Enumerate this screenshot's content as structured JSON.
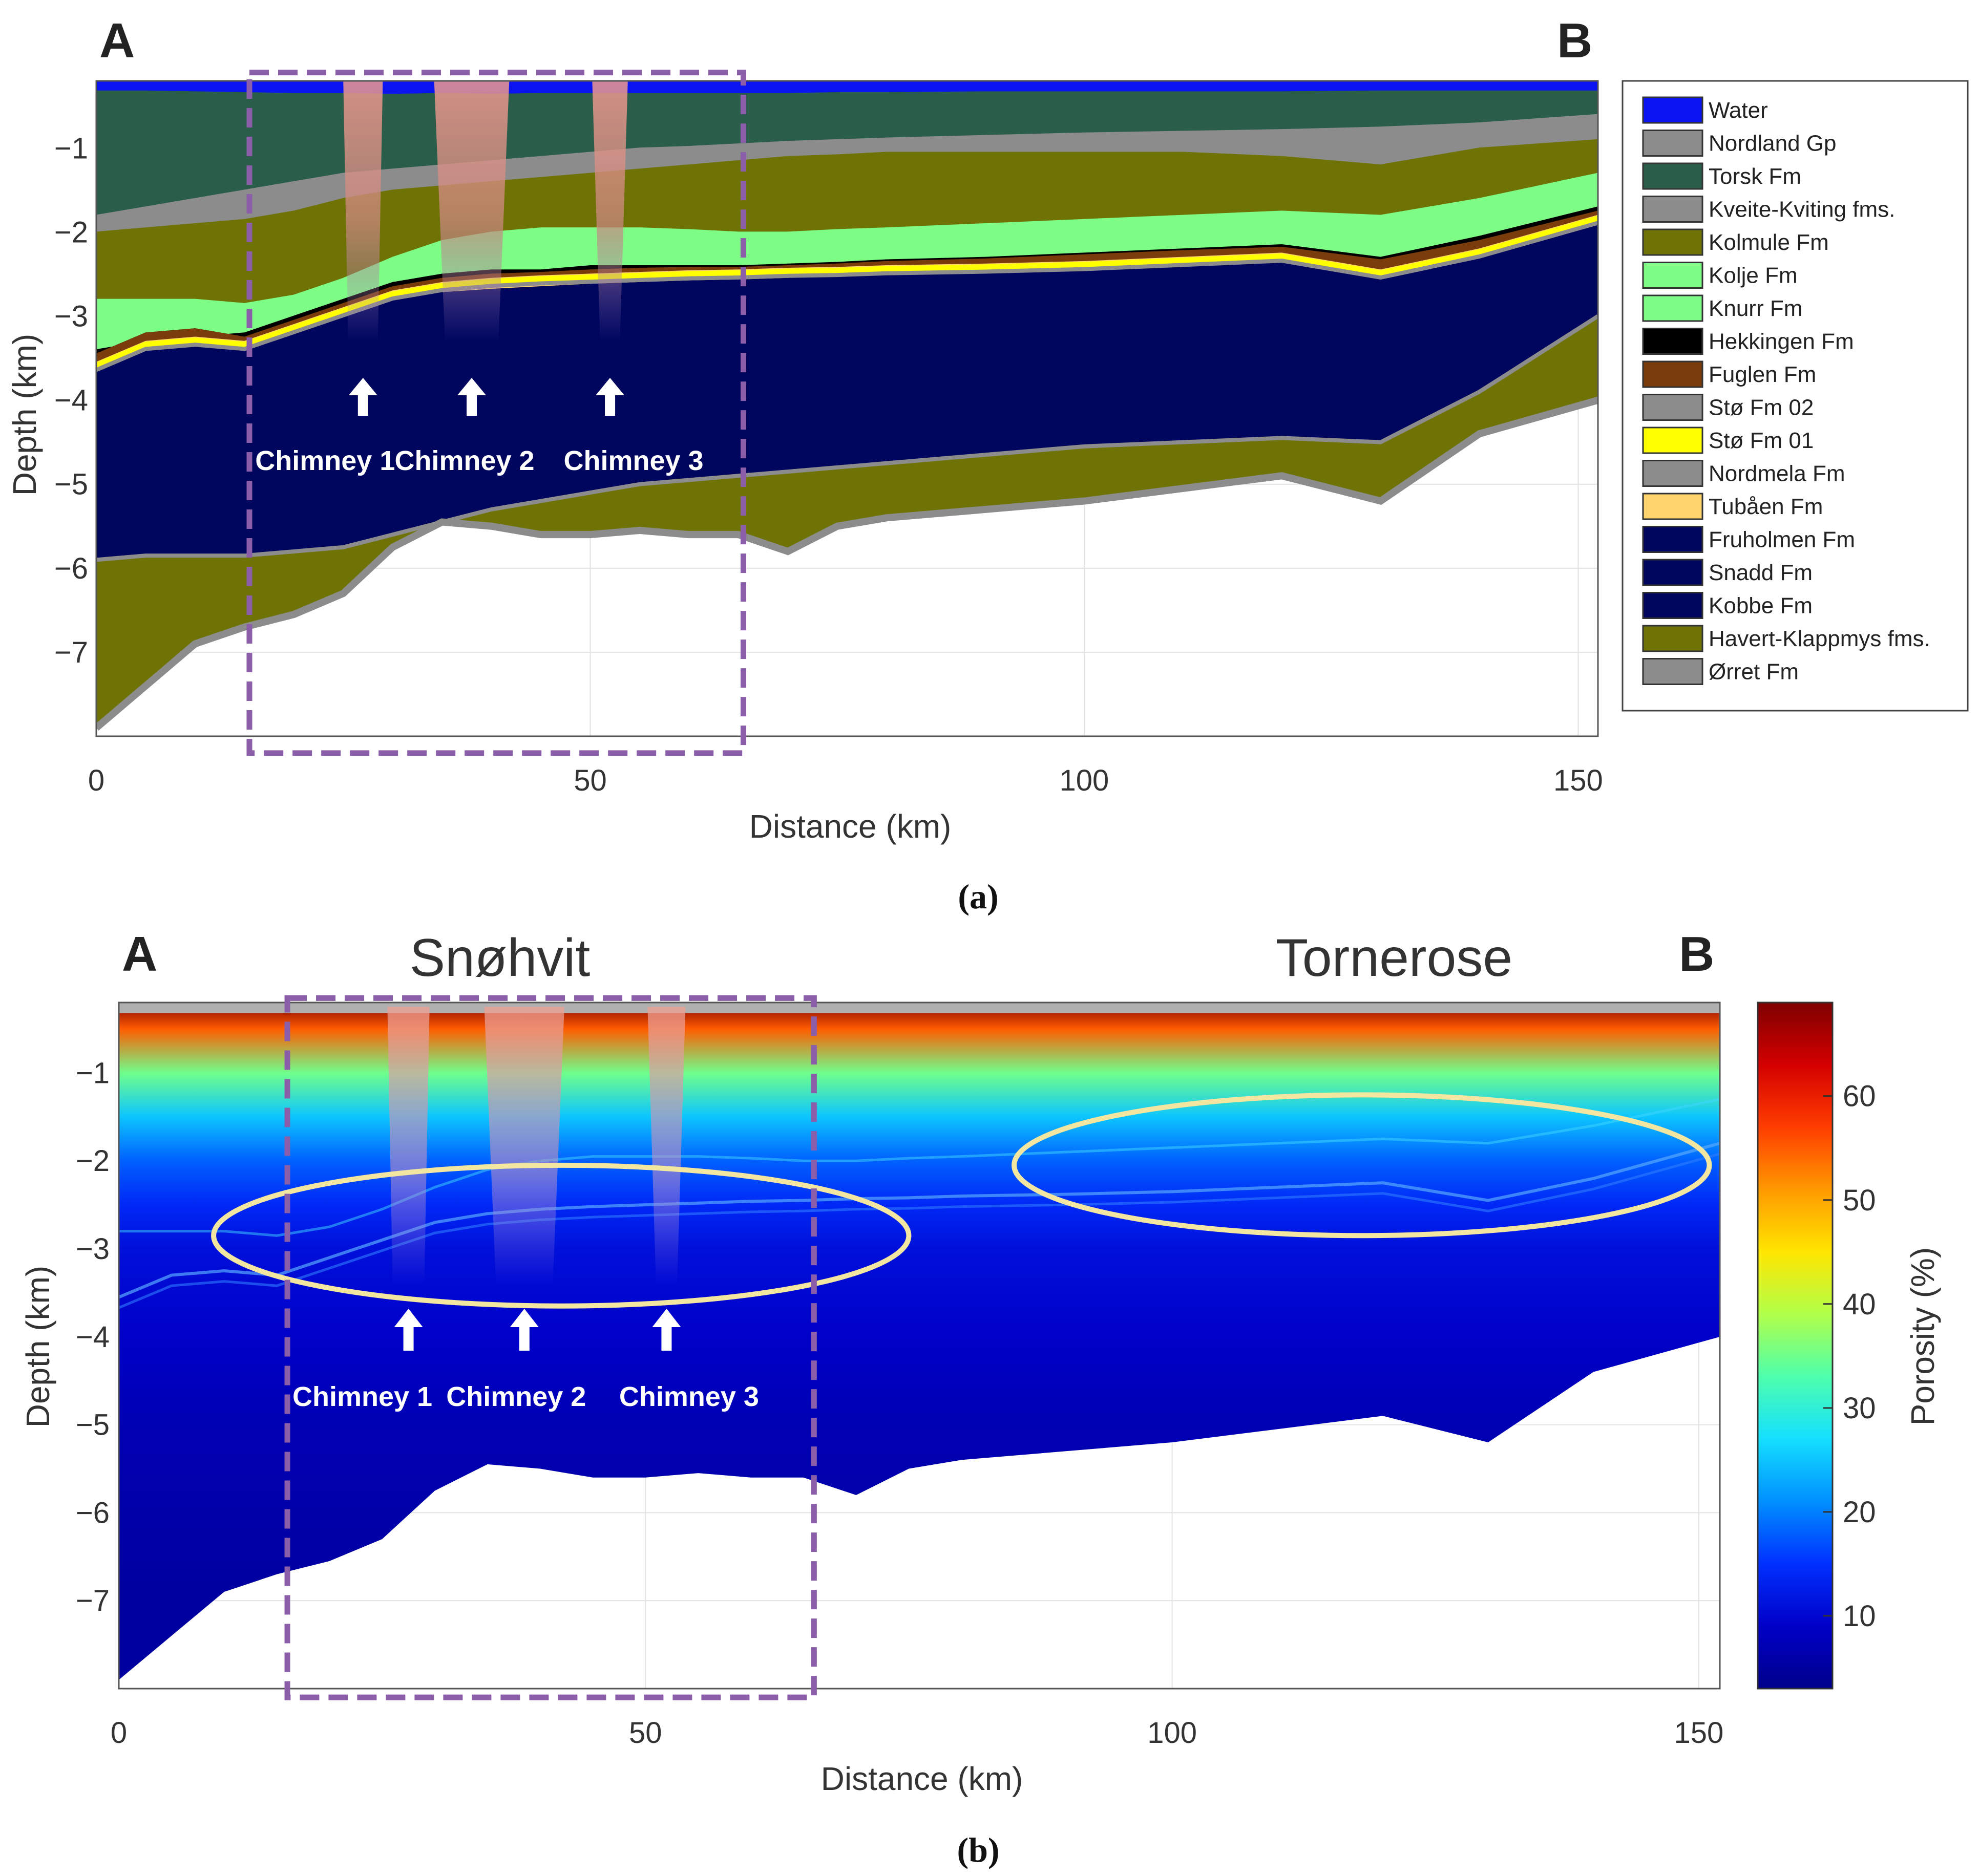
{
  "panel_a": {
    "corner_left": "A",
    "corner_right": "B",
    "caption": "(a)",
    "y_axis_label": "Depth (km)",
    "x_axis_label": "Distance (km)",
    "x_ticks": [
      0,
      50,
      100,
      150
    ],
    "y_ticks": [
      -1,
      -2,
      -3,
      -4,
      -5,
      -6,
      -7
    ],
    "x_range_km": [
      0,
      152
    ],
    "depth_range_km": [
      -0.2,
      -8.0
    ],
    "chimneys": [
      {
        "label": "Chimney 1",
        "x_km": 27,
        "top_km": -0.2,
        "bottom_km": -3.3,
        "half_width_top_km": 2.0,
        "half_width_bottom_km": 1.5
      },
      {
        "label": "Chimney 2",
        "x_km": 38,
        "top_km": -0.2,
        "bottom_km": -3.3,
        "half_width_top_km": 3.8,
        "half_width_bottom_km": 2.7
      },
      {
        "label": "Chimney 3",
        "x_km": 52,
        "top_km": -0.2,
        "bottom_km": -3.3,
        "half_width_top_km": 1.8,
        "half_width_bottom_km": 1.0
      }
    ],
    "highlight_box_km": {
      "x0": 15.5,
      "x1": 65.5,
      "y0": -0.1,
      "y1": -8.2
    },
    "legend": [
      {
        "name": "Water",
        "color": "#0a14f0"
      },
      {
        "name": "Nordland Gp",
        "color": "#8c8c8c"
      },
      {
        "name": "Torsk Fm",
        "color": "#2a5e4a"
      },
      {
        "name": "Kveite-Kviting fms.",
        "color": "#8c8c8c"
      },
      {
        "name": "Kolmule Fm",
        "color": "#6f7305"
      },
      {
        "name": "Kolje Fm",
        "color": "#7dfc86"
      },
      {
        "name": "Knurr Fm",
        "color": "#7dfc86"
      },
      {
        "name": "Hekkingen Fm",
        "color": "#000000"
      },
      {
        "name": "Fuglen Fm",
        "color": "#7a3c0a"
      },
      {
        "name": "Stø Fm 02",
        "color": "#8c8c8c"
      },
      {
        "name": "Stø Fm 01",
        "color": "#ffff00"
      },
      {
        "name": "Nordmela Fm",
        "color": "#8c8c8c"
      },
      {
        "name": "Tubåen Fm",
        "color": "#ffd36e"
      },
      {
        "name": "Fruholmen Fm",
        "color": "#00065e"
      },
      {
        "name": "Snadd Fm",
        "color": "#00065e"
      },
      {
        "name": "Kobbe Fm",
        "color": "#00065e"
      },
      {
        "name": "Havert-Klappmys fms.",
        "color": "#6f7305"
      },
      {
        "name": "Ørret Fm",
        "color": "#8c8c8c"
      }
    ]
  },
  "panel_b": {
    "corner_left": "A",
    "corner_right": "B",
    "caption": "(b)",
    "field_left": "Snøhvit",
    "field_right": "Tornerose",
    "y_axis_label": "Depth (km)",
    "x_axis_label": "Distance (km)",
    "x_ticks": [
      0,
      50,
      100,
      150
    ],
    "y_ticks": [
      -1,
      -2,
      -3,
      -4,
      -5,
      -6,
      -7
    ],
    "colorbar_label": "Porosity (%)",
    "colorbar_ticks": [
      10,
      20,
      30,
      40,
      50,
      60
    ],
    "colorbar_range": [
      3,
      69
    ],
    "colorbar_colors": [
      "#7f0000",
      "#d40000",
      "#ff3d00",
      "#ff9a00",
      "#ffe600",
      "#b0ff4a",
      "#4effad",
      "#14e0ff",
      "#0090ff",
      "#0030ff",
      "#0000c8",
      "#00008a"
    ],
    "chimneys": [
      {
        "label": "Chimney 1",
        "x_km": 27.5
      },
      {
        "label": "Chimney 2",
        "x_km": 38.5
      },
      {
        "label": "Chimney 3",
        "x_km": 52
      }
    ],
    "highlight_ellipses": [
      {
        "cx_km": 42,
        "cy_km": -2.85,
        "rx_km": 33,
        "ry_km": 0.8
      },
      {
        "cx_km": 118,
        "cy_km": -2.05,
        "rx_km": 33,
        "ry_km": 0.8
      }
    ],
    "highlight_box_km": {
      "x0": 16,
      "x1": 66,
      "y0": -0.15,
      "y1": -8.1
    }
  },
  "chart_data": [
    {
      "type": "area",
      "title": "",
      "xlabel": "Distance (km)",
      "ylabel": "Depth (km)",
      "xlim": [
        0,
        152
      ],
      "ylim": [
        -8.0,
        -0.2
      ],
      "x": [
        0,
        5,
        10,
        15,
        20,
        25,
        30,
        35,
        40,
        45,
        50,
        55,
        60,
        65,
        70,
        75,
        80,
        90,
        100,
        110,
        120,
        130,
        140,
        152
      ],
      "boundaries": [
        {
          "name": "Water base",
          "color": "#0a14f0",
          "depth_top": -0.2,
          "values": [
            -0.32,
            -0.32,
            -0.33,
            -0.34,
            -0.35,
            -0.35,
            -0.36,
            -0.35,
            -0.36,
            -0.35,
            -0.35,
            -0.35,
            -0.35,
            -0.35,
            -0.35,
            -0.34,
            -0.34,
            -0.33,
            -0.33,
            -0.33,
            -0.33,
            -0.32,
            -0.32,
            -0.32
          ]
        },
        {
          "name": "Torsk Fm",
          "color": "#2a5e4a",
          "values": [
            -1.8,
            -1.7,
            -1.6,
            -1.5,
            -1.4,
            -1.3,
            -1.25,
            -1.2,
            -1.15,
            -1.1,
            -1.05,
            -1.0,
            -0.98,
            -0.95,
            -0.92,
            -0.9,
            -0.88,
            -0.85,
            -0.82,
            -0.8,
            -0.78,
            -0.75,
            -0.7,
            -0.6
          ]
        },
        {
          "name": "Kveite-Kviting fms.",
          "color": "#8c8c8c",
          "values": [
            -2.0,
            -1.95,
            -1.9,
            -1.85,
            -1.75,
            -1.6,
            -1.5,
            -1.45,
            -1.4,
            -1.35,
            -1.3,
            -1.25,
            -1.2,
            -1.15,
            -1.1,
            -1.08,
            -1.05,
            -1.05,
            -1.05,
            -1.05,
            -1.1,
            -1.2,
            -1.0,
            -0.9
          ]
        },
        {
          "name": "Kolmule Fm",
          "color": "#6f7305",
          "values": [
            -2.8,
            -2.8,
            -2.8,
            -2.85,
            -2.75,
            -2.55,
            -2.3,
            -2.1,
            -2.0,
            -1.95,
            -1.95,
            -1.95,
            -1.97,
            -2.0,
            -2.0,
            -1.97,
            -1.95,
            -1.9,
            -1.85,
            -1.8,
            -1.75,
            -1.8,
            -1.6,
            -1.3
          ]
        },
        {
          "name": "Kolje Fm",
          "color": "#7dfc86",
          "values": [
            -3.4,
            -3.3,
            -3.25,
            -3.2,
            -3.0,
            -2.8,
            -2.6,
            -2.5,
            -2.45,
            -2.45,
            -2.4,
            -2.4,
            -2.4,
            -2.4,
            -2.38,
            -2.36,
            -2.33,
            -2.3,
            -2.25,
            -2.2,
            -2.15,
            -2.3,
            -2.05,
            -1.7
          ]
        },
        {
          "name": "Hekkingen Fm",
          "color": "#000000",
          "values": [
            -3.45,
            -3.2,
            -3.15,
            -3.25,
            -3.05,
            -2.85,
            -2.65,
            -2.55,
            -2.5,
            -2.48,
            -2.45,
            -2.43,
            -2.42,
            -2.42,
            -2.4,
            -2.38,
            -2.35,
            -2.32,
            -2.27,
            -2.22,
            -2.18,
            -2.33,
            -2.1,
            -1.75
          ]
        },
        {
          "name": "Fuglen Fm",
          "color": "#7a3c0a",
          "values": [
            -3.55,
            -3.3,
            -3.25,
            -3.3,
            -3.1,
            -2.9,
            -2.7,
            -2.6,
            -2.55,
            -2.52,
            -2.5,
            -2.48,
            -2.46,
            -2.45,
            -2.43,
            -2.42,
            -2.4,
            -2.38,
            -2.35,
            -2.3,
            -2.25,
            -2.45,
            -2.2,
            -1.8
          ]
        },
        {
          "name": "Stø/Tubåen",
          "color": "#ffd36e",
          "values": [
            -3.65,
            -3.4,
            -3.35,
            -3.4,
            -3.2,
            -3.0,
            -2.8,
            -2.72,
            -2.68,
            -2.65,
            -2.62,
            -2.6,
            -2.58,
            -2.57,
            -2.55,
            -2.52,
            -2.5,
            -2.45,
            -2.4,
            -2.35,
            -2.3,
            -2.55,
            -2.3,
            -1.85
          ]
        },
        {
          "name": "Fruholmen/Snadd/Kobbe",
          "color": "#00065e",
          "values": [
            -5.9,
            -5.85,
            -5.85,
            -5.85,
            -5.8,
            -5.75,
            -5.6,
            -5.45,
            -5.3,
            -5.2,
            -5.1,
            -5.0,
            -4.95,
            -4.9,
            -4.85,
            -4.8,
            -4.75,
            -4.65,
            -4.55,
            -4.5,
            -4.45,
            -4.5,
            -3.9,
            -3.0
          ]
        },
        {
          "name": "Havert-Klappmys fms.",
          "color": "#6f7305",
          "values": [
            -7.9,
            -7.4,
            -6.9,
            -6.7,
            -6.55,
            -6.3,
            -5.75,
            -5.45,
            -5.5,
            -5.6,
            -5.6,
            -5.55,
            -5.6,
            -5.6,
            -5.8,
            -5.5,
            -5.4,
            -5.3,
            -5.2,
            -5.05,
            -4.9,
            -5.2,
            -4.4,
            -4.0
          ]
        }
      ]
    },
    {
      "type": "heatmap",
      "title": "",
      "xlabel": "Distance (km)",
      "ylabel": "Depth (km)",
      "zlabel": "Porosity (%)",
      "xlim": [
        0,
        152
      ],
      "ylim": [
        -8.0,
        -0.2
      ],
      "zlim": [
        3,
        69
      ],
      "x": [
        0,
        5,
        10,
        15,
        20,
        25,
        30,
        35,
        40,
        45,
        50,
        55,
        60,
        65,
        70,
        75,
        80,
        90,
        100,
        110,
        120,
        130,
        140,
        152
      ],
      "base_depth": [
        -7.9,
        -7.4,
        -6.9,
        -6.7,
        -6.55,
        -6.3,
        -5.75,
        -5.45,
        -5.5,
        -5.6,
        -5.6,
        -5.55,
        -5.6,
        -5.6,
        -5.8,
        -5.5,
        -5.4,
        -5.3,
        -5.2,
        -5.05,
        -4.9,
        -5.2,
        -4.4,
        -4.0
      ],
      "porosity_vs_depth": {
        "depth_km": [
          -0.2,
          -0.5,
          -1.0,
          -1.5,
          -2.0,
          -2.5,
          -3.0,
          -4.0,
          -5.0,
          -7.0
        ],
        "porosity_pct": [
          69,
          55,
          35,
          25,
          18,
          14,
          11,
          9,
          7,
          5
        ]
      }
    }
  ]
}
